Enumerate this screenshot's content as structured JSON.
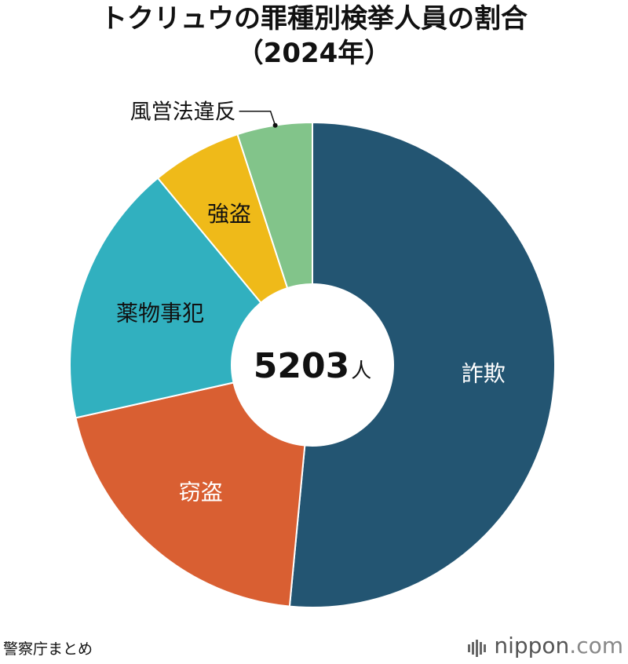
{
  "title": {
    "line1": "トクリュウの罪種別検挙人員の割合",
    "line2": "（2024年）"
  },
  "center_label": {
    "number": "5203",
    "unit": "人"
  },
  "source": "警察庁まとめ",
  "brand": {
    "name": "nippon",
    "suffix": ".com"
  },
  "chart_data": {
    "type": "pie",
    "donut": true,
    "total": 5203,
    "total_unit": "人",
    "start": "12 o'clock, clockwise",
    "categories": [
      "詐欺",
      "窃盗",
      "薬物事犯",
      "強盗",
      "風営法違反"
    ],
    "values": [
      51.5,
      20.0,
      17.5,
      6.0,
      5.0
    ],
    "colors": [
      "#235572",
      "#D95F32",
      "#31B0BF",
      "#EFBA19",
      "#82C48A"
    ],
    "label_colors": [
      "#ffffff",
      "#ffffff",
      "#111111",
      "#111111",
      "#111111"
    ]
  }
}
